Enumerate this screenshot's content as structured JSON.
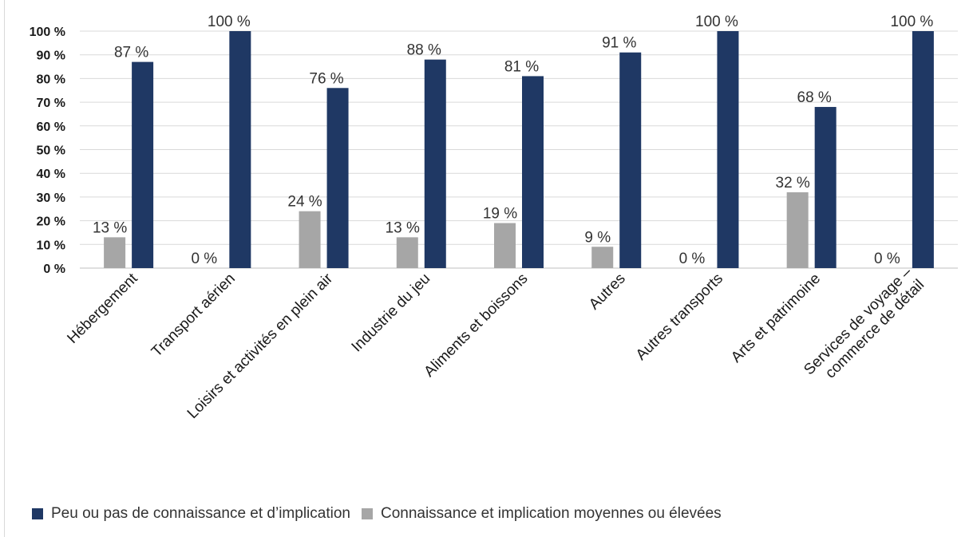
{
  "chart_data": {
    "type": "bar",
    "categories": [
      [
        "Hébergement"
      ],
      [
        "Transport aérien"
      ],
      [
        "Loisirs et activités en plein air"
      ],
      [
        "Industrie du jeu"
      ],
      [
        "Aliments et boissons"
      ],
      [
        "Autres"
      ],
      [
        "Autres transports"
      ],
      [
        "Arts et patrimoine"
      ],
      [
        "Services de voyage –",
        "commerce de détail"
      ]
    ],
    "series": [
      {
        "name": "Connaissance et implication moyennes ou élevées",
        "color": "#a6a6a6",
        "values": [
          13,
          0,
          24,
          13,
          19,
          9,
          0,
          32,
          0
        ],
        "labels": [
          "13 %",
          "0 %",
          "24 %",
          "13 %",
          "19 %",
          "9 %",
          "0 %",
          "32 %",
          "0 %"
        ]
      },
      {
        "name": "Peu ou pas de connaissance et d’implication",
        "color": "#1f3864",
        "values": [
          87,
          100,
          76,
          88,
          81,
          91,
          100,
          68,
          100
        ],
        "labels": [
          "87 %",
          "100 %",
          "76 %",
          "88 %",
          "81 %",
          "91 %",
          "100 %",
          "68 %",
          "100 %"
        ]
      }
    ],
    "yticks": [
      "0 %",
      "10 %",
      "20 %",
      "30 %",
      "40 %",
      "50 %",
      "60 %",
      "70 %",
      "80 %",
      "90 %",
      "100 %"
    ],
    "ylim": [
      0,
      100
    ],
    "grid": true,
    "legend_position": "bottom",
    "title": "",
    "xlabel": "",
    "ylabel": ""
  },
  "legend": {
    "items": [
      {
        "label": "Peu ou pas de connaissance et d’implication",
        "color": "#1f3864"
      },
      {
        "label": "Connaissance et implication moyennes ou élevées",
        "color": "#a6a6a6"
      }
    ]
  }
}
